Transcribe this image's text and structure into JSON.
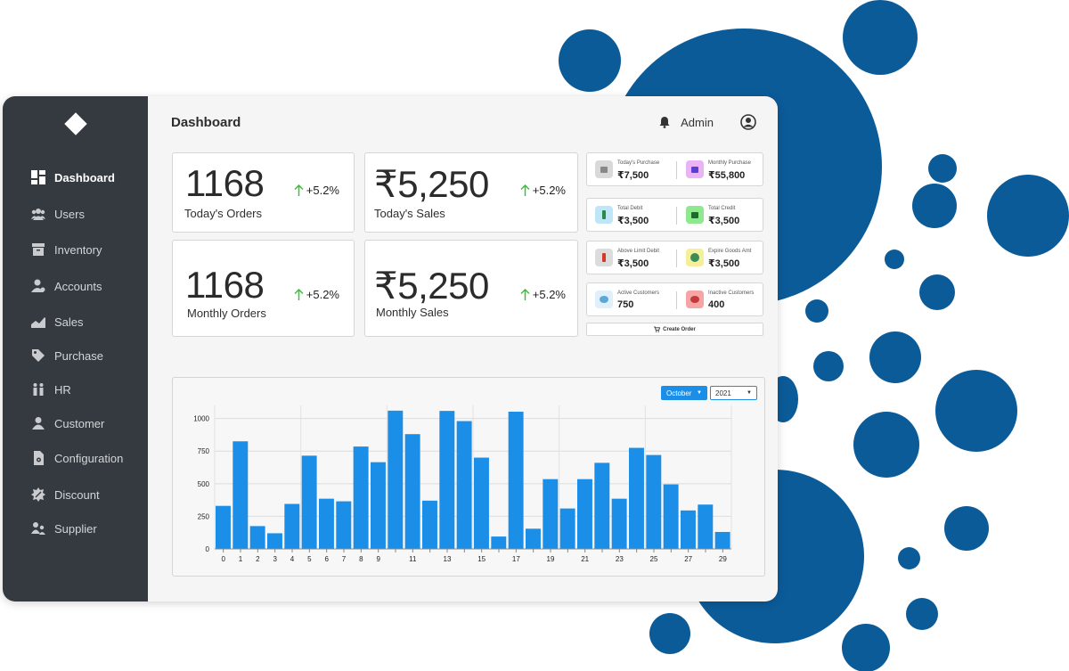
{
  "sidebar": {
    "items": [
      {
        "label": "Dashboard",
        "icon": "dashboard-icon",
        "active": true
      },
      {
        "label": "Users",
        "icon": "users-icon"
      },
      {
        "label": "Inventory",
        "icon": "inventory-icon"
      },
      {
        "label": "Accounts",
        "icon": "accounts-icon"
      },
      {
        "label": "Sales",
        "icon": "sales-icon"
      },
      {
        "label": "Purchase",
        "icon": "purchase-tag-icon"
      },
      {
        "label": "HR",
        "icon": "hr-icon"
      },
      {
        "label": "Customer",
        "icon": "customer-icon"
      },
      {
        "label": "Configuration",
        "icon": "configuration-icon"
      },
      {
        "label": "Discount",
        "icon": "discount-icon"
      },
      {
        "label": "Supplier",
        "icon": "supplier-icon"
      }
    ]
  },
  "header": {
    "title": "Dashboard",
    "user_name": "Admin"
  },
  "stats": [
    {
      "value": "1168",
      "label": "Today's Orders",
      "change": "+5.2%"
    },
    {
      "value": "₹5,250",
      "label": "Today's Sales",
      "change": "+5.2%"
    },
    {
      "value": "1168",
      "label": "Monthly Orders",
      "change": "+5.2%"
    },
    {
      "value": "₹5,250",
      "label": "Monthly Sales",
      "change": "+5.2%"
    }
  ],
  "mini_stats": [
    {
      "label": "Today's Purchase",
      "value": "₹7,500",
      "icon_color": "#d9d9d9"
    },
    {
      "label": "Monthly Purchase",
      "value": "₹55,800",
      "icon_color": "#e9b3f5"
    },
    {
      "label": "Total Debit",
      "value": "₹3,500",
      "icon_color": "#bfe6f7"
    },
    {
      "label": "Total Credit",
      "value": "₹3,500",
      "icon_color": "#8ee98e"
    },
    {
      "label": "Above Limit Debit",
      "value": "₹3,500",
      "icon_color": "#dcdcdc"
    },
    {
      "label": "Expire Goods Amt",
      "value": "₹3,500",
      "icon_color": "#f4ef9b"
    },
    {
      "label": "Active Customers",
      "value": "750",
      "icon_color": "#dff0fb"
    },
    {
      "label": "Inactive Customers",
      "value": "400",
      "icon_color": "#f7a4a4"
    }
  ],
  "create_order_label": "Create Order",
  "filters": {
    "month": "October",
    "year": "2021"
  },
  "colors": {
    "sidebar": "#343a40",
    "accent": "#1b8ee8",
    "bubble": "#0b5b99",
    "positive": "#3cc13c"
  },
  "chart_data": {
    "type": "bar",
    "x": [
      0,
      1,
      2,
      3,
      4,
      5,
      6,
      7,
      8,
      9,
      10,
      11,
      12,
      13,
      14,
      15,
      16,
      17,
      18,
      19,
      20,
      21,
      22,
      23,
      24,
      25,
      26,
      27,
      28,
      29
    ],
    "x_tick_labels": [
      "0",
      "1",
      "2",
      "3",
      "4",
      "5",
      "6",
      "7",
      "8",
      "9",
      "11",
      "13",
      "15",
      "17",
      "19",
      "21",
      "23",
      "25",
      "27",
      "29"
    ],
    "values": [
      330,
      825,
      175,
      120,
      345,
      715,
      385,
      365,
      785,
      665,
      1060,
      880,
      370,
      1058,
      980,
      700,
      95,
      1052,
      155,
      535,
      310,
      535,
      660,
      385,
      775,
      720,
      495,
      295,
      340,
      130
    ],
    "y_ticks": [
      0,
      250,
      500,
      750,
      1000
    ],
    "ylim": [
      0,
      1100
    ],
    "grid": true,
    "bar_color": "#1b8ee8"
  }
}
